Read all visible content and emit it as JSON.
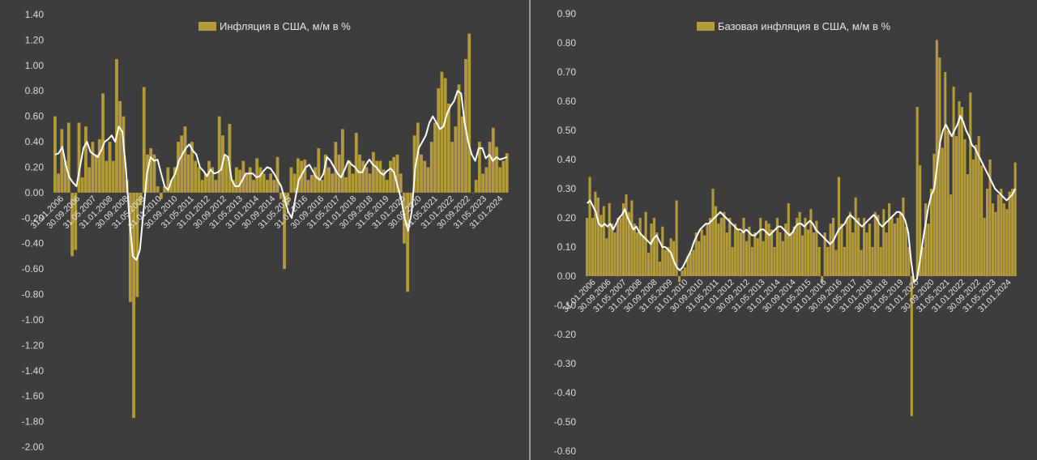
{
  "colors": {
    "background": "#3d3d3d",
    "bar": "#b39a3b",
    "line": "#ffffff",
    "divider": "#9a9a9a"
  },
  "chart_data": [
    {
      "type": "bar",
      "legend": "Инфляция в США, м/м в %",
      "legend_position": "top-center",
      "ylim": [
        -2.0,
        1.4
      ],
      "y_ticks": [
        "1.40",
        "1.20",
        "1.00",
        "0.80",
        "0.60",
        "0.40",
        "0.20",
        "0.00",
        "-0.20",
        "-0.40",
        "-0.60",
        "-0.80",
        "-1.00",
        "-1.20",
        "-1.40",
        "-1.60",
        "-1.80",
        "-2.00"
      ],
      "x_tick_labels": [
        "31.01.2006",
        "30.09.2006",
        "31.05.2007",
        "31.01.2008",
        "30.09.2008",
        "31.05.2009",
        "31.01.2010",
        "30.09.2010",
        "31.05.2011",
        "31.01.2012",
        "30.09.2012",
        "31.05.2013",
        "31.01.2014",
        "30.09.2014",
        "31.05.2015",
        "31.01.2016",
        "30.09.2016",
        "31.05.2017",
        "31.01.2018",
        "30.09.2018",
        "31.05.2019",
        "31.01.2020",
        "30.09.2020",
        "31.05.2021",
        "31.01.2022",
        "30.09.2022",
        "31.05.2023",
        "31.01.2024"
      ],
      "series": [
        {
          "values": [
            0.6,
            0.15,
            0.5,
            0.25,
            0.55,
            -0.5,
            -0.45,
            0.55,
            0.12,
            0.52,
            0.2,
            0.4,
            0.3,
            0.42,
            0.78,
            0.25,
            0.4,
            0.25,
            1.05,
            0.72,
            0.6,
            0.1,
            -0.86,
            -1.77,
            -0.82,
            -0.1,
            0.83,
            0.3,
            0.35,
            0.3,
            0.05,
            -0.05,
            0.05,
            0.2,
            0.1,
            0.2,
            0.4,
            0.45,
            0.52,
            0.3,
            0.4,
            0.25,
            0.2,
            0.1,
            0.15,
            0.25,
            0.2,
            0.1,
            0.6,
            0.45,
            0.28,
            0.54,
            0.1,
            0.2,
            0.18,
            0.25,
            0.15,
            0.2,
            0.1,
            0.27,
            0.2,
            0.15,
            0.1,
            0.15,
            0.1,
            0.28,
            -0.05,
            -0.6,
            -0.1,
            0.2,
            0.15,
            0.27,
            0.25,
            0.26,
            0.1,
            0.14,
            0.2,
            0.35,
            0.1,
            0.3,
            0.2,
            0.15,
            0.4,
            0.3,
            0.5,
            0.12,
            0.25,
            0.15,
            0.47,
            0.3,
            0.25,
            0.2,
            0.15,
            0.32,
            0.25,
            0.25,
            0.18,
            0.1,
            0.25,
            0.28,
            0.3,
            0.15,
            -0.4,
            -0.78,
            -0.1,
            0.45,
            0.55,
            0.3,
            0.25,
            0.2,
            0.4,
            0.55,
            0.82,
            0.95,
            0.9,
            0.7,
            0.4,
            0.52,
            0.85,
            0.6,
            1.05,
            1.25,
            0.0,
            0.1,
            0.4,
            0.15,
            0.2,
            0.4,
            0.51,
            0.36,
            0.2,
            0.25,
            0.31
          ]
        },
        {
          "values": [
            0.3,
            0.31,
            0.36,
            0.22,
            0.12,
            0.08,
            0.05,
            0.2,
            0.35,
            0.4,
            0.32,
            0.3,
            0.28,
            0.33,
            0.4,
            0.42,
            0.45,
            0.4,
            0.52,
            0.48,
            0.2,
            -0.2,
            -0.5,
            -0.53,
            -0.45,
            -0.15,
            0.15,
            0.28,
            0.25,
            0.26,
            0.15,
            0.05,
            0.02,
            0.1,
            0.15,
            0.25,
            0.3,
            0.35,
            0.38,
            0.33,
            0.3,
            0.2,
            0.17,
            0.13,
            0.18,
            0.15,
            0.16,
            0.18,
            0.3,
            0.28,
            0.1,
            0.05,
            0.05,
            0.1,
            0.15,
            0.15,
            0.15,
            0.12,
            0.13,
            0.17,
            0.2,
            0.19,
            0.15,
            0.1,
            0.05,
            -0.05,
            -0.15,
            -0.2,
            -0.05,
            0.1,
            0.15,
            0.2,
            0.22,
            0.17,
            0.12,
            0.1,
            0.15,
            0.28,
            0.25,
            0.2,
            0.15,
            0.12,
            0.18,
            0.25,
            0.22,
            0.2,
            0.16,
            0.16,
            0.22,
            0.26,
            0.22,
            0.2,
            0.16,
            0.14,
            0.17,
            0.19,
            0.16,
            0.05,
            -0.05,
            -0.2,
            -0.3,
            -0.15,
            0.2,
            0.35,
            0.4,
            0.45,
            0.55,
            0.6,
            0.55,
            0.5,
            0.52,
            0.62,
            0.68,
            0.72,
            0.8,
            0.78,
            0.55,
            0.4,
            0.3,
            0.25,
            0.35,
            0.35,
            0.27,
            0.3,
            0.25,
            0.28,
            0.26,
            0.27,
            0.28
          ]
        }
      ]
    },
    {
      "type": "bar",
      "legend": "Базовая инфляция в США, м/м в %",
      "legend_position": "top-center",
      "ylim": [
        -0.6,
        0.9
      ],
      "y_ticks": [
        "0.90",
        "0.80",
        "0.70",
        "0.60",
        "0.50",
        "0.40",
        "0.30",
        "0.20",
        "0.10",
        "0.00",
        "-0.10",
        "-0.20",
        "-0.30",
        "-0.40",
        "-0.50",
        "-0.60"
      ],
      "x_tick_labels": [
        "31.01.2006",
        "30.09.2006",
        "31.05.2007",
        "31.01.2008",
        "30.09.2008",
        "31.05.2009",
        "31.01.2010",
        "30.09.2010",
        "31.05.2011",
        "31.01.2012",
        "30.09.2012",
        "31.05.2013",
        "31.01.2014",
        "30.09.2014",
        "31.05.2015",
        "31.01.2016",
        "30.09.2016",
        "31.05.2017",
        "31.01.2018",
        "30.09.2018",
        "31.05.2019",
        "31.01.2020",
        "30.09.2020",
        "31.05.2021",
        "31.01.2022",
        "30.09.2022",
        "31.05.2023",
        "31.01.2024"
      ],
      "series": [
        {
          "values": [
            0.2,
            0.34,
            0.2,
            0.29,
            0.27,
            0.21,
            0.24,
            0.13,
            0.25,
            0.18,
            0.15,
            0.2,
            0.2,
            0.25,
            0.28,
            0.22,
            0.26,
            0.18,
            0.15,
            0.2,
            0.14,
            0.22,
            0.08,
            0.18,
            0.2,
            0.15,
            0.05,
            0.17,
            0.09,
            0.1,
            0.13,
            0.12,
            0.26,
            -0.02,
            0.02,
            0.03,
            0.07,
            0.08,
            0.09,
            0.15,
            0.12,
            0.16,
            0.14,
            0.18,
            0.2,
            0.3,
            0.24,
            0.18,
            0.2,
            0.22,
            0.15,
            0.2,
            0.1,
            0.18,
            0.16,
            0.15,
            0.2,
            0.12,
            0.17,
            0.1,
            0.15,
            0.13,
            0.2,
            0.12,
            0.19,
            0.18,
            0.16,
            0.1,
            0.2,
            0.15,
            0.12,
            0.18,
            0.25,
            0.15,
            0.17,
            0.2,
            0.22,
            0.14,
            0.2,
            0.16,
            0.23,
            0.15,
            0.19,
            0.1,
            -0.02,
            0.15,
            0.1,
            0.18,
            0.2,
            0.09,
            0.34,
            0.18,
            0.1,
            0.2,
            0.22,
            0.15,
            0.27,
            0.2,
            0.09,
            0.2,
            0.15,
            0.18,
            0.1,
            0.22,
            0.21,
            0.1,
            0.23,
            0.15,
            0.25,
            0.2,
            0.18,
            0.2,
            0.22,
            0.27,
            0.17,
            0.1,
            -0.48,
            0.0,
            0.58,
            0.38,
            0.1,
            0.25,
            0.18,
            0.3,
            0.42,
            0.81,
            0.75,
            0.44,
            0.7,
            0.5,
            0.28,
            0.65,
            0.48,
            0.6,
            0.58,
            0.47,
            0.35,
            0.63,
            0.4,
            0.45,
            0.48,
            0.38,
            0.2,
            0.3,
            0.4,
            0.25,
            0.22,
            0.28,
            0.3,
            0.25,
            0.23,
            0.29,
            0.3,
            0.39
          ]
        },
        {
          "values": [
            0.25,
            0.26,
            0.24,
            0.22,
            0.18,
            0.17,
            0.18,
            0.17,
            0.18,
            0.16,
            0.18,
            0.2,
            0.21,
            0.23,
            0.2,
            0.18,
            0.16,
            0.17,
            0.15,
            0.14,
            0.13,
            0.12,
            0.11,
            0.13,
            0.14,
            0.12,
            0.1,
            0.1,
            0.09,
            0.08,
            0.05,
            0.03,
            0.02,
            0.03,
            0.05,
            0.07,
            0.09,
            0.12,
            0.14,
            0.16,
            0.17,
            0.18,
            0.18,
            0.19,
            0.2,
            0.21,
            0.22,
            0.21,
            0.2,
            0.19,
            0.18,
            0.17,
            0.16,
            0.16,
            0.15,
            0.16,
            0.15,
            0.14,
            0.14,
            0.15,
            0.16,
            0.16,
            0.15,
            0.14,
            0.15,
            0.16,
            0.17,
            0.17,
            0.16,
            0.15,
            0.14,
            0.15,
            0.17,
            0.18,
            0.18,
            0.17,
            0.18,
            0.19,
            0.18,
            0.16,
            0.15,
            0.14,
            0.13,
            0.12,
            0.11,
            0.12,
            0.14,
            0.16,
            0.17,
            0.18,
            0.2,
            0.21,
            0.2,
            0.19,
            0.18,
            0.17,
            0.18,
            0.19,
            0.2,
            0.21,
            0.2,
            0.18,
            0.17,
            0.18,
            0.19,
            0.2,
            0.21,
            0.22,
            0.22,
            0.21,
            0.19,
            0.15,
            0.05,
            -0.02,
            -0.01,
            0.05,
            0.12,
            0.18,
            0.24,
            0.28,
            0.3,
            0.38,
            0.46,
            0.5,
            0.52,
            0.5,
            0.48,
            0.5,
            0.52,
            0.55,
            0.53,
            0.5,
            0.48,
            0.45,
            0.44,
            0.42,
            0.4,
            0.38,
            0.36,
            0.34,
            0.32,
            0.3,
            0.29,
            0.28,
            0.27,
            0.26,
            0.27,
            0.28,
            0.3
          ]
        }
      ]
    }
  ]
}
